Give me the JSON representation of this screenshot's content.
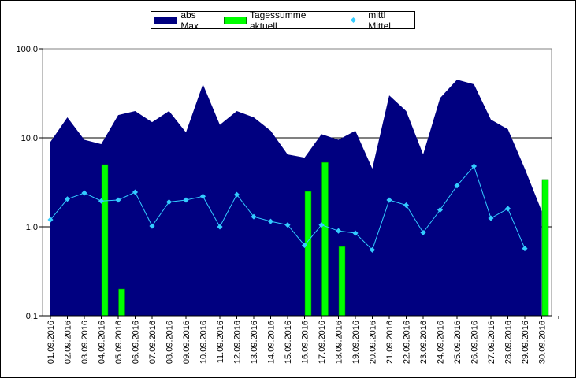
{
  "chart_data": {
    "type": "area",
    "y_scale": "log",
    "ylim": [
      0.1,
      100
    ],
    "yticks": [
      "0,1",
      "1,0",
      "10,0",
      "100,0"
    ],
    "grid": "horizontal",
    "legend_position": "top",
    "categories": [
      "01.09.2016",
      "02.09.2016",
      "03.09.2016",
      "04.09.2016",
      "05.09.2016",
      "06.09.2016",
      "07.09.2016",
      "08.09.2016",
      "09.09.2016",
      "10.09.2016",
      "11.09.2016",
      "12.09.2016",
      "13.09.2016",
      "14.09.2016",
      "15.09.2016",
      "16.09.2016",
      "17.09.2016",
      "18.09.2016",
      "19.09.2016",
      "20.09.2016",
      "21.09.2016",
      "22.09.2016",
      "23.09.2016",
      "24.09.2016",
      "25.09.2016",
      "26.09.2016",
      "27.09.2016",
      "28.09.2016",
      "29.09.2016",
      "30.09.2016"
    ],
    "xtick_labels": [
      "01.09.2016",
      "02.09.2016",
      "03.09.2016",
      "04.09.2016",
      "05.09.2016",
      "06.09.2016",
      "07.09.2016",
      "08.09.2016",
      "09.09.2016",
      "10.09.2016",
      "11.09.2016",
      "12.09.2016",
      "13.09.2016",
      "14.09.2016",
      "15.09.2016",
      "16.09.2016",
      "17.09.2016",
      "18.09.2016",
      "19.09.2016",
      "20.09.2016",
      "21.09.2016",
      "22.09.2016",
      "23.09.2016",
      "24.09.2016",
      "25.09.2016",
      "26.09.2016",
      "27.09.2016",
      "28.09.2016",
      "29.09.2016",
      "30.09.2016"
    ],
    "series": [
      {
        "name": "abs Max",
        "type": "area",
        "color": "#000080",
        "values": [
          9,
          17,
          9.5,
          8.5,
          18,
          20,
          15,
          20,
          11.5,
          40,
          14,
          20,
          17,
          12,
          6.5,
          6,
          11,
          9.5,
          12,
          4.5,
          30,
          20,
          6.5,
          28,
          45,
          40,
          16,
          12.5,
          4.5,
          1.5
        ]
      },
      {
        "name": "Tagessumme aktuell",
        "type": "bar",
        "color": "#00ff00",
        "values": [
          null,
          null,
          null,
          5,
          0.2,
          null,
          null,
          null,
          null,
          null,
          null,
          null,
          null,
          null,
          null,
          2.5,
          5.3,
          0.6,
          null,
          null,
          null,
          null,
          null,
          null,
          null,
          null,
          null,
          null,
          null,
          3.4
        ]
      },
      {
        "name": "mittl Mittel",
        "type": "line",
        "color": "#33ccff",
        "values": [
          1.2,
          2.05,
          2.4,
          1.95,
          2,
          2.45,
          1.02,
          1.9,
          2,
          2.2,
          1,
          2.3,
          1.3,
          1.15,
          1.05,
          0.62,
          1.05,
          0.9,
          0.85,
          0.55,
          2,
          1.75,
          0.86,
          1.55,
          2.9,
          4.8,
          1.25,
          1.6,
          0.57,
          null
        ]
      }
    ]
  },
  "legend": {
    "items": [
      "abs Max",
      "Tagessumme aktuell",
      "mittl Mittel"
    ]
  }
}
